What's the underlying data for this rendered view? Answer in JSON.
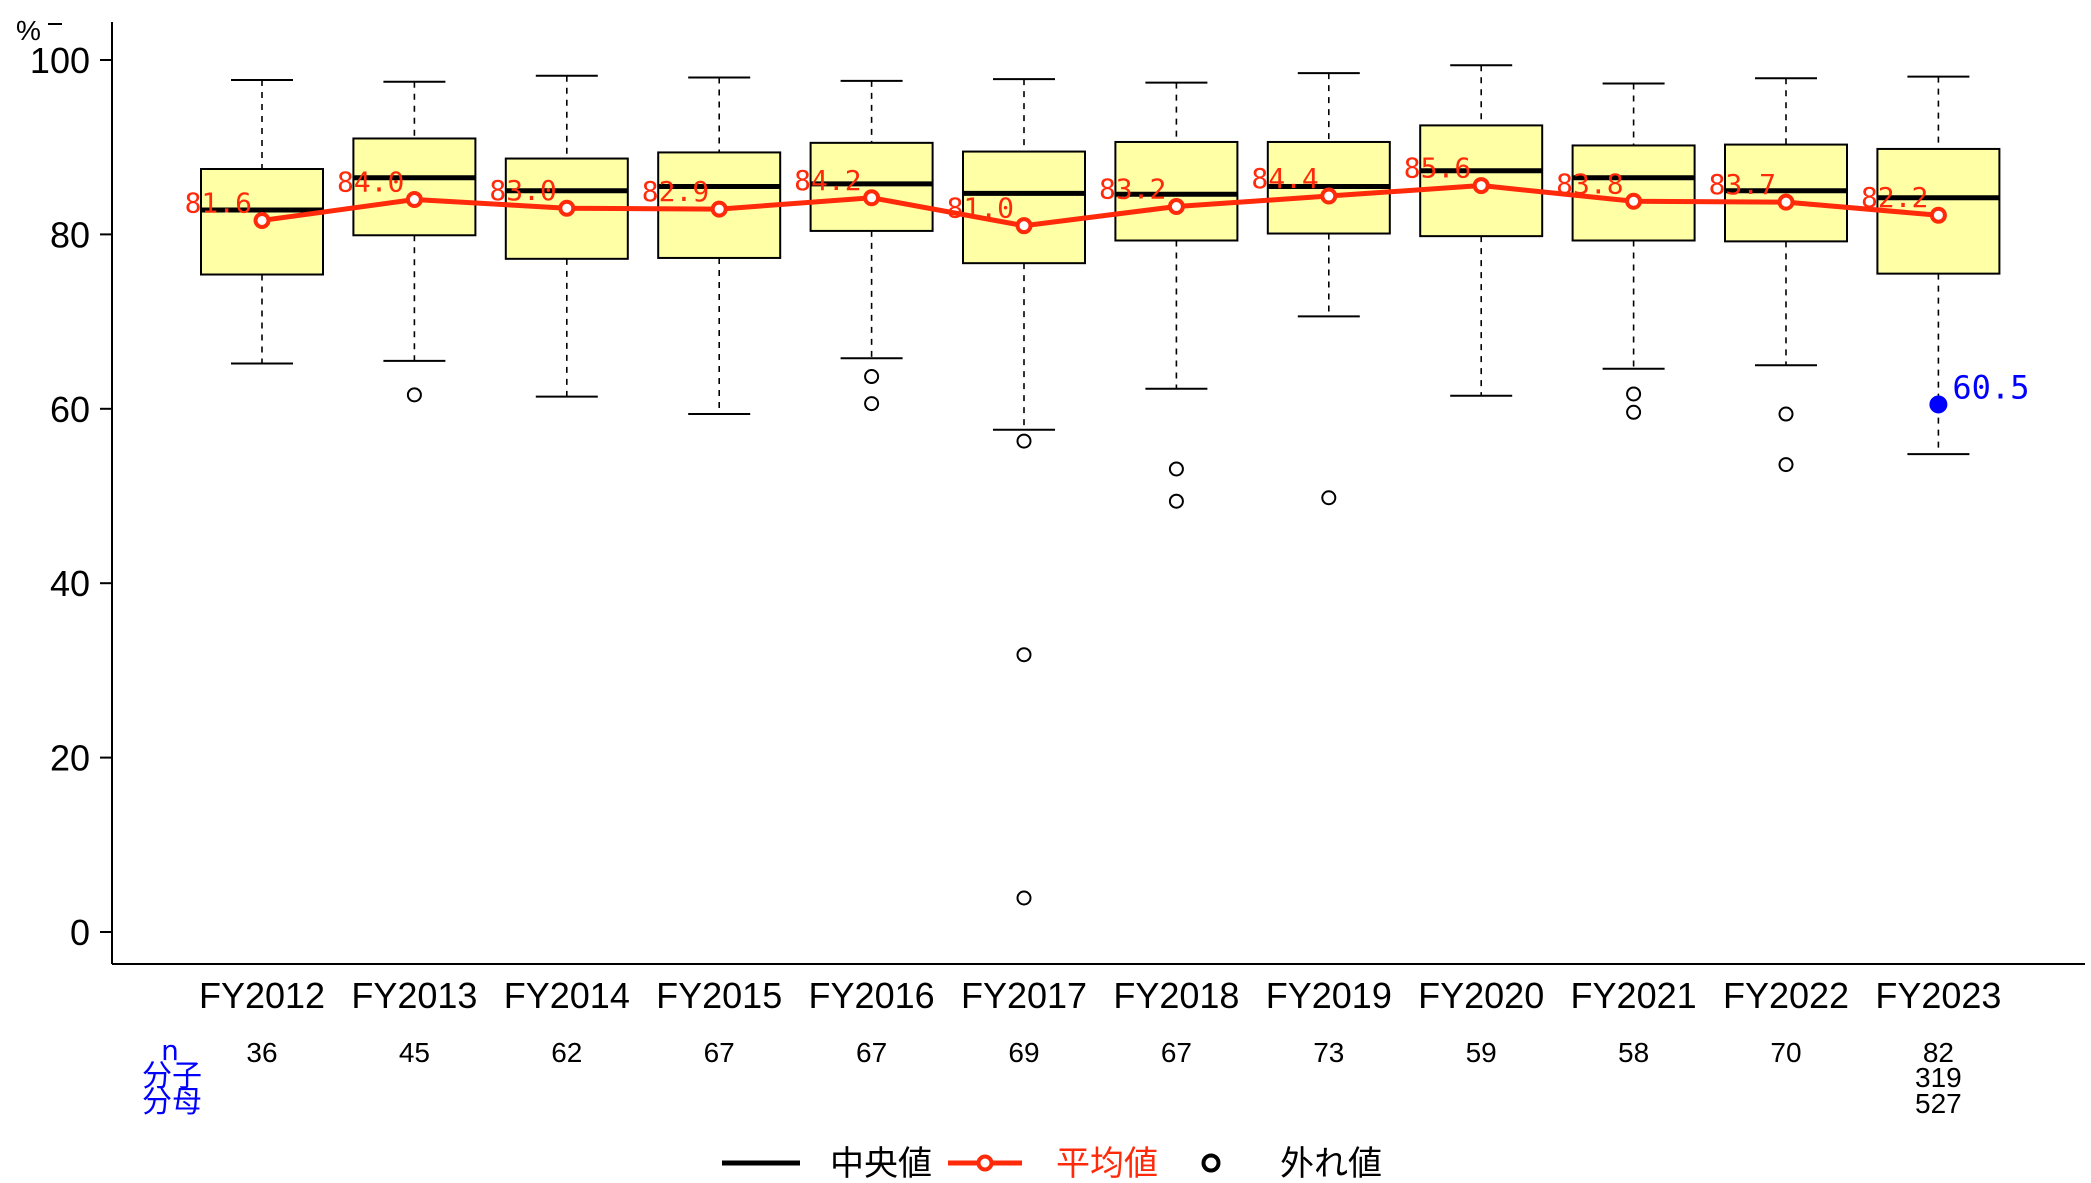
{
  "chart_data": {
    "type": "box",
    "title": "",
    "ylabel": "%",
    "ylim": [
      0,
      100
    ],
    "yticks": [
      0,
      20,
      40,
      60,
      80,
      100
    ],
    "categories": [
      "FY2012",
      "FY2013",
      "FY2014",
      "FY2015",
      "FY2016",
      "FY2017",
      "FY2018",
      "FY2019",
      "FY2020",
      "FY2021",
      "FY2022",
      "FY2023"
    ],
    "boxes": [
      {
        "min": 65.2,
        "q1": 75.4,
        "median": 82.8,
        "q3": 87.5,
        "max": 97.7,
        "outliers": []
      },
      {
        "min": 65.5,
        "q1": 79.9,
        "median": 86.5,
        "q3": 91.0,
        "max": 97.5,
        "outliers": [
          61.6
        ]
      },
      {
        "min": 61.4,
        "q1": 77.2,
        "median": 85.0,
        "q3": 88.7,
        "max": 98.2,
        "outliers": []
      },
      {
        "min": 59.4,
        "q1": 77.3,
        "median": 85.5,
        "q3": 89.4,
        "max": 98.0,
        "outliers": []
      },
      {
        "min": 65.8,
        "q1": 80.4,
        "median": 85.8,
        "q3": 90.5,
        "max": 97.6,
        "outliers": [
          63.7,
          60.6
        ]
      },
      {
        "min": 57.6,
        "q1": 76.7,
        "median": 84.7,
        "q3": 89.5,
        "max": 97.8,
        "outliers": [
          56.3,
          31.8,
          3.9
        ]
      },
      {
        "min": 62.3,
        "q1": 79.3,
        "median": 84.6,
        "q3": 90.6,
        "max": 97.4,
        "outliers": [
          53.1,
          49.4
        ]
      },
      {
        "min": 70.6,
        "q1": 80.1,
        "median": 85.5,
        "q3": 90.6,
        "max": 98.5,
        "outliers": [
          49.8
        ]
      },
      {
        "min": 61.5,
        "q1": 79.8,
        "median": 87.3,
        "q3": 92.5,
        "max": 99.4,
        "outliers": []
      },
      {
        "min": 64.6,
        "q1": 79.3,
        "median": 86.5,
        "q3": 90.2,
        "max": 97.3,
        "outliers": [
          61.7,
          59.6
        ]
      },
      {
        "min": 65.0,
        "q1": 79.2,
        "median": 85.0,
        "q3": 90.3,
        "max": 97.9,
        "outliers": [
          59.4,
          53.6
        ]
      },
      {
        "min": 54.8,
        "q1": 75.5,
        "median": 84.2,
        "q3": 89.8,
        "max": 98.1,
        "outliers": []
      }
    ],
    "mean_series": {
      "name": "平均値",
      "values": [
        81.6,
        84.0,
        83.0,
        82.9,
        84.2,
        81.0,
        83.2,
        84.4,
        85.6,
        83.8,
        83.7,
        82.2
      ],
      "labels": [
        "81.6",
        "84.0",
        "83.0",
        "82.9",
        "84.2",
        "81.0",
        "83.2",
        "84.4",
        "85.6",
        "83.8",
        "83.7",
        "82.2"
      ]
    },
    "highlight": {
      "category_index": 11,
      "value": 60.5,
      "label": "60.5"
    },
    "n_row": {
      "labels": [
        "n",
        "分子",
        "分母"
      ],
      "n": [
        "36",
        "45",
        "62",
        "67",
        "67",
        "69",
        "67",
        "73",
        "59",
        "58",
        "70",
        "82"
      ],
      "numerator_last": "319",
      "denominator_last": "527"
    },
    "legend": {
      "placement": "bottom-center",
      "items": [
        {
          "key": "median",
          "label": "中央値"
        },
        {
          "key": "mean",
          "label": "平均値"
        },
        {
          "key": "outlier",
          "label": "外れ値"
        }
      ]
    },
    "colors": {
      "box_fill": "#FFFFA6",
      "mean": "#FF2A0A",
      "highlight": "#0000FF",
      "n_text": "#0000FF",
      "axis": "#000000"
    }
  }
}
